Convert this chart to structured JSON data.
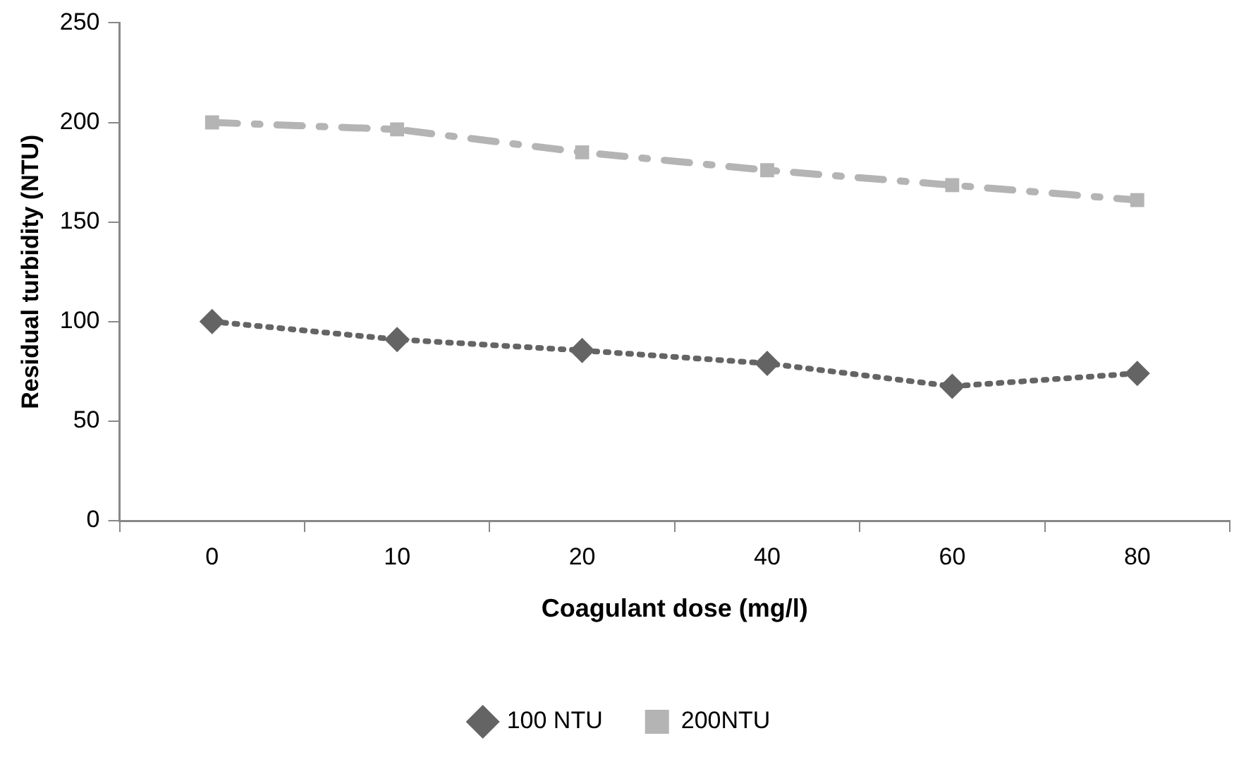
{
  "chart_data": {
    "type": "line",
    "xlabel": "Coagulant dose (mg/l)",
    "ylabel": "Residual turbidity (NTU)",
    "categories": [
      "0",
      "10",
      "20",
      "40",
      "60",
      "80"
    ],
    "series": [
      {
        "name": "100 NTU",
        "color": "#646464",
        "values": [
          100,
          91,
          85.5,
          79,
          67.5,
          74
        ],
        "marker": "diamond",
        "line_style": "dotted"
      },
      {
        "name": "200NTU",
        "color": "#b4b4b4",
        "values": [
          200,
          196.5,
          185,
          176,
          168.5,
          161
        ],
        "marker": "square",
        "line_style": "dashed"
      }
    ],
    "ylim": [
      0,
      250
    ],
    "yticks": [
      0,
      50,
      100,
      150,
      200,
      250
    ],
    "grid": false,
    "legend": "bottom"
  }
}
